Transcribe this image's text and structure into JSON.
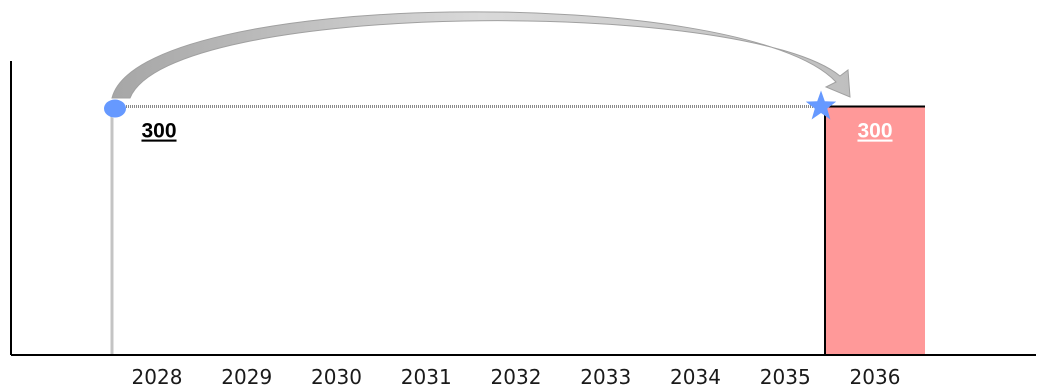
{
  "chart_data": {
    "type": "bar",
    "categories": [
      "2028",
      "2029",
      "2030",
      "2031",
      "2032",
      "2033",
      "2034",
      "2035",
      "2036"
    ],
    "values": [
      300,
      null,
      null,
      null,
      null,
      null,
      null,
      null,
      300
    ],
    "ylim": [
      0,
      355
    ],
    "grid": false,
    "title": "",
    "xlabel": "",
    "ylabel": "",
    "annotations": {
      "start_value_label": "300",
      "end_value_label": "300",
      "start_category": "2028",
      "end_category": "2036",
      "start_marker": "circle",
      "end_marker": "star",
      "arrow": "curved arrow from 2028 to 2036"
    },
    "colors": {
      "bar_fill": "#ff9999",
      "bar_stroke": "#000000",
      "marker": "#6699ff",
      "arrow": "#c0c0c0",
      "start_label": "#000000",
      "end_label": "#ffffff",
      "axis": "#000000"
    }
  }
}
